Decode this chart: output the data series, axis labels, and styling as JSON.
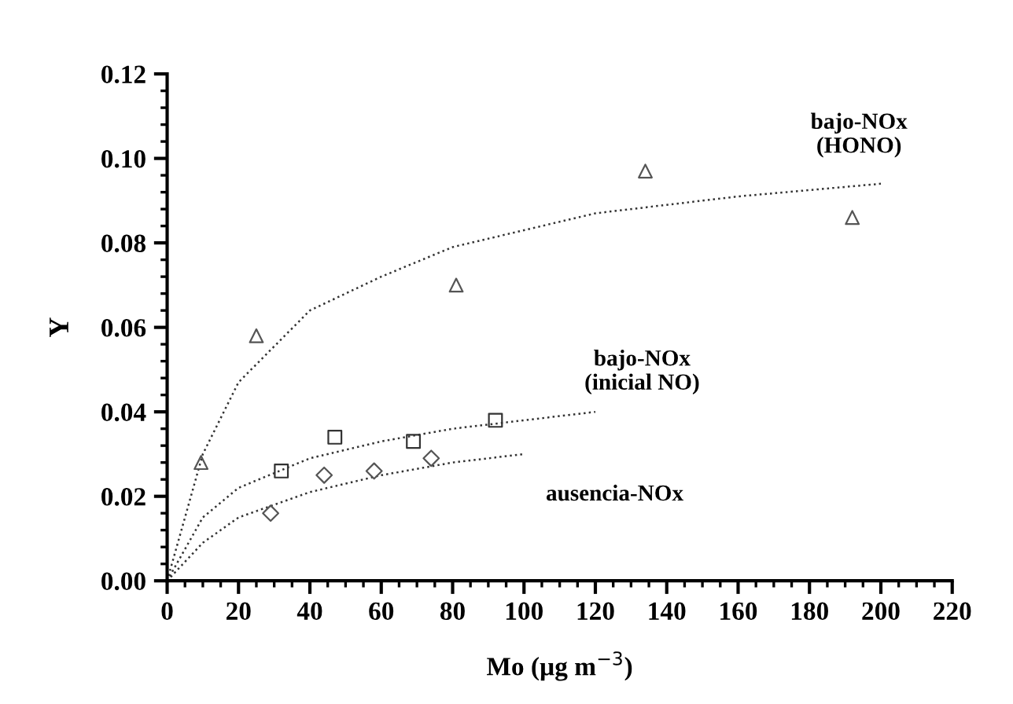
{
  "chart_data": {
    "type": "scatter",
    "xlabel": "Mo (µg m$^{−3}$)",
    "ylabel": "Y",
    "xlim": [
      0,
      220
    ],
    "xticks": [
      0,
      20,
      40,
      60,
      80,
      100,
      120,
      140,
      160,
      180,
      200,
      220
    ],
    "ylim": [
      0,
      0.12
    ],
    "yticks": [
      {
        "value": 0,
        "label": "0.00"
      },
      {
        "value": 0.02,
        "label": "0.02"
      },
      {
        "value": 0.04,
        "label": "0.04"
      },
      {
        "value": 0.06,
        "label": "0.06"
      },
      {
        "value": 0.08,
        "label": "0.08"
      },
      {
        "value": 0.1,
        "label": "0.10"
      },
      {
        "value": 0.12,
        "label": "0.12"
      }
    ],
    "grid": false,
    "legend": false,
    "series": [
      {
        "marker": "triangle",
        "color": "#555555",
        "x": [
          9.5,
          25,
          81,
          134,
          192
        ],
        "values": [
          0.028,
          0.058,
          0.07,
          0.097,
          0.086
        ]
      },
      {
        "marker": "square",
        "color": "#333333",
        "x": [
          32,
          47,
          69,
          92
        ],
        "values": [
          0.026,
          0.034,
          0.033,
          0.038
        ]
      },
      {
        "marker": "diamond",
        "color": "#555555",
        "x": [
          29,
          44,
          58,
          74
        ],
        "values": [
          0.016,
          0.025,
          0.026,
          0.029
        ]
      },
      {
        "type": "line",
        "line_style": "dotted",
        "marker": "none",
        "color": "#333333",
        "x": [
          0,
          10,
          20,
          40,
          60,
          80,
          100,
          120,
          140,
          160,
          200
        ],
        "values": [
          0,
          0.03,
          0.047,
          0.064,
          0.072,
          0.079,
          0.083,
          0.087,
          0.089,
          0.091,
          0.094
        ]
      },
      {
        "type": "line",
        "line_style": "dotted",
        "marker": "none",
        "color": "#333333",
        "x": [
          0,
          10,
          20,
          40,
          60,
          80,
          100,
          120
        ],
        "values": [
          0,
          0.015,
          0.022,
          0.029,
          0.033,
          0.036,
          0.038,
          0.04
        ]
      },
      {
        "type": "line",
        "line_style": "dotted",
        "marker": "none",
        "color": "#333333",
        "x": [
          0,
          10,
          20,
          40,
          60,
          80,
          100
        ],
        "values": [
          0,
          0.009,
          0.015,
          0.021,
          0.025,
          0.028,
          0.03
        ]
      }
    ],
    "annotations": [
      {
        "text": "bajo-NOx\n(HONO)",
        "x": 200,
        "y": 0.094
      },
      {
        "text": "bajo-NOx\n(inicial NO)",
        "x": 120,
        "y": 0.04
      },
      {
        "text": "ausencia-NOx",
        "x": 100,
        "y": 0.03
      }
    ]
  }
}
